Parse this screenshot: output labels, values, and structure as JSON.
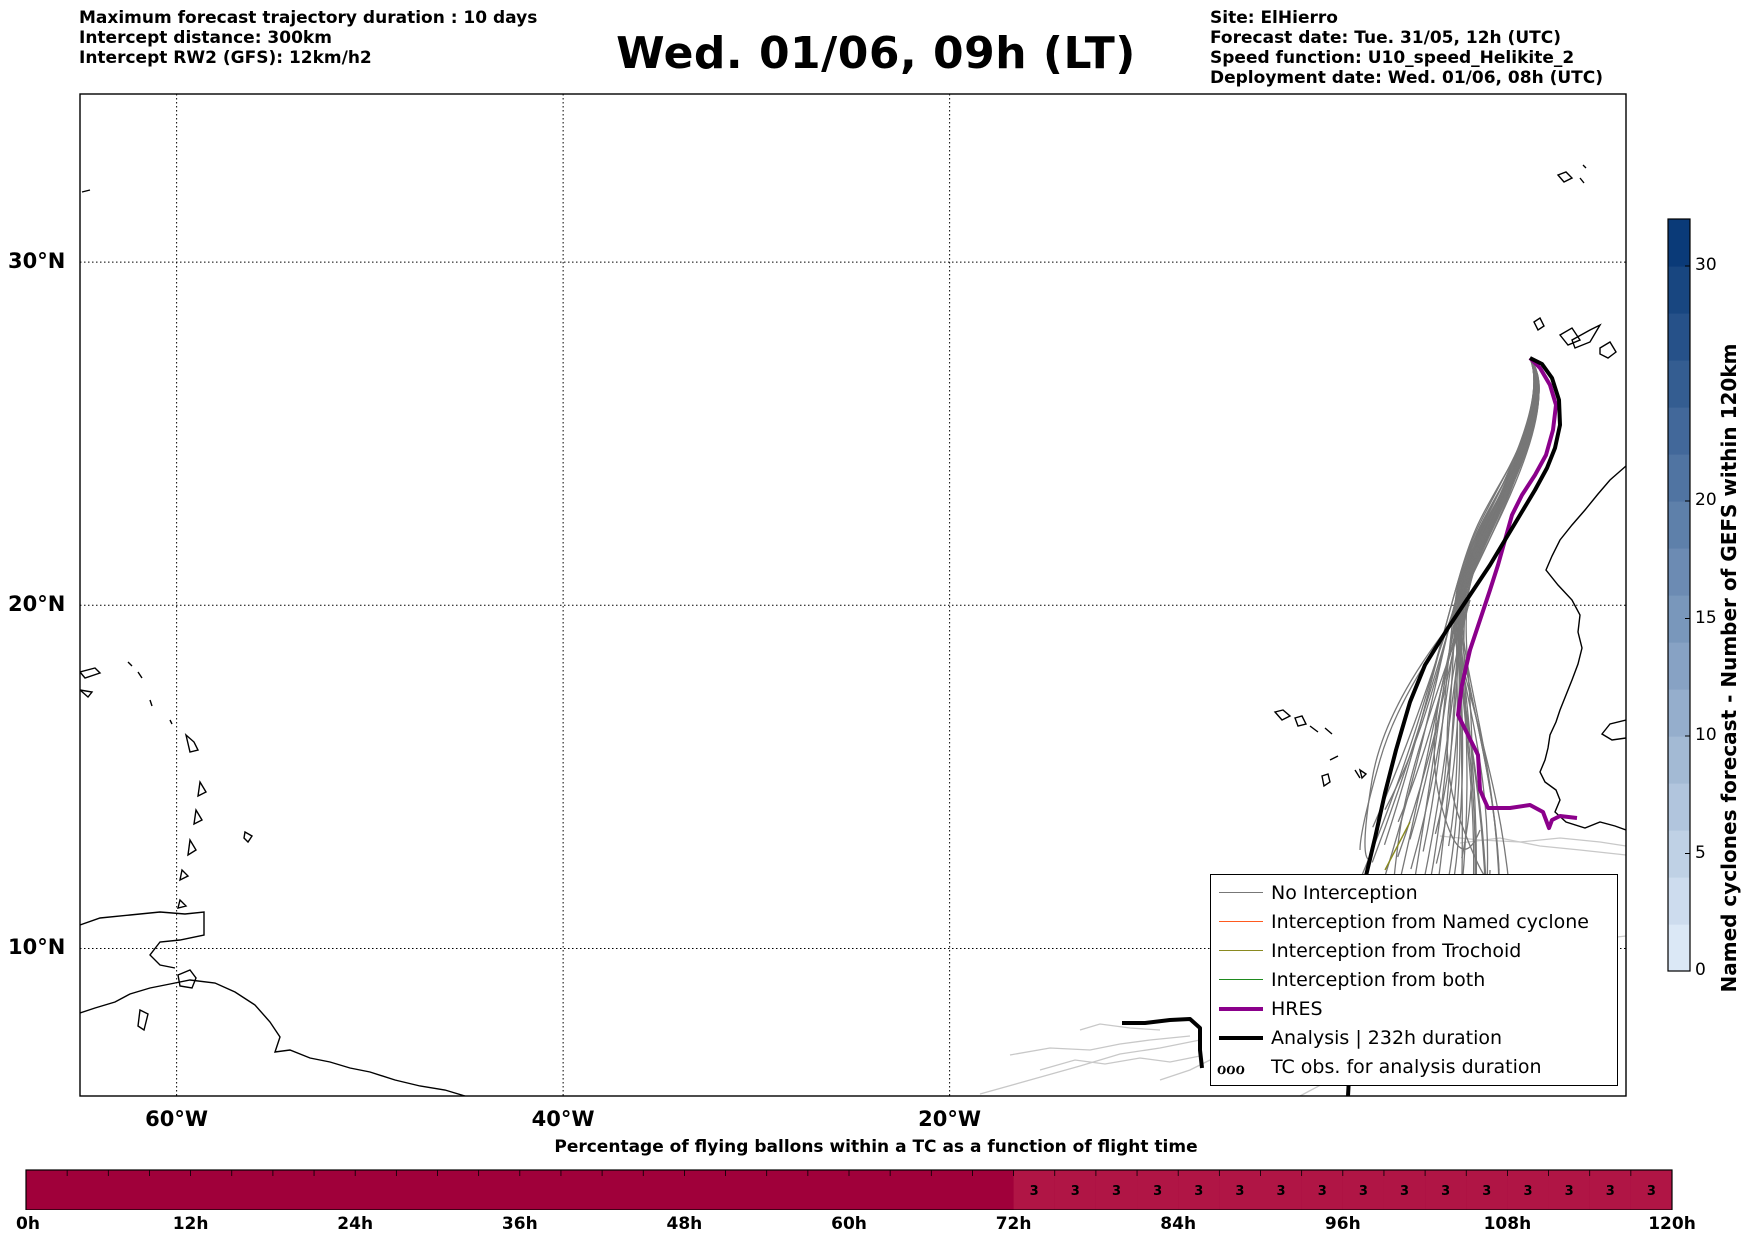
{
  "header": {
    "left_lines": [
      "Maximum forecast trajectory duration : 10 days",
      "Intercept distance: 300km",
      "Intercept RW2 (GFS):  12km/h2"
    ],
    "title": "Wed. 01/06, 09h (LT)",
    "right_lines": [
      "Site: ElHierro",
      "Forecast date: Tue. 31/05, 12h (UTC)",
      "Speed function: U10_speed_Helikite_2",
      "Deployment date: Wed. 01/06, 08h (UTC)"
    ]
  },
  "map": {
    "lon_range": [
      -65,
      15
    ],
    "lat_range": [
      5.7,
      34.9
    ],
    "lon_ticks": [
      {
        "value": -60,
        "label": "60°W"
      },
      {
        "value": -40,
        "label": "40°W"
      },
      {
        "value": -20,
        "label": "20°W"
      }
    ],
    "lat_ticks": [
      {
        "value": 30,
        "label": "30°N"
      },
      {
        "value": 20,
        "label": "20°N"
      },
      {
        "value": 10,
        "label": "10°N"
      }
    ],
    "gridlines": true,
    "colors": {
      "no_interception": "#777777",
      "named_cyclone": "#ff5a1f",
      "trochoid": "#8a8a20",
      "both": "#1e8a1e",
      "hres": "#8b008b",
      "analysis": "#000000",
      "coastline": "#000000"
    }
  },
  "legend": {
    "items": [
      {
        "label": "No Interception",
        "style": "thin-gray"
      },
      {
        "label": "Interception from Named cyclone",
        "style": "thin-orange"
      },
      {
        "label": "Interception from Trochoid",
        "style": "thin-olive"
      },
      {
        "label": "Interception from both",
        "style": "thin-green"
      },
      {
        "label": "HRES",
        "style": "thick-purple"
      },
      {
        "label": "Analysis | 232h duration",
        "style": "thick-black"
      },
      {
        "label": "TC obs. for analysis duration",
        "style": "cyclone-symbols"
      }
    ],
    "symbol_glyph": "ℴℴℴ"
  },
  "colorbar": {
    "title": "Named cyclones forecast - Number of GEFS within 120km",
    "range": [
      0,
      32
    ],
    "ticks": [
      {
        "value": 0,
        "label": "0"
      },
      {
        "value": 5,
        "label": "5"
      },
      {
        "value": 10,
        "label": "10"
      },
      {
        "value": 15,
        "label": "15"
      },
      {
        "value": 20,
        "label": "20"
      },
      {
        "value": 30,
        "label": "30"
      }
    ],
    "color_low": "#dbe8f6",
    "color_high": "#0a3a78"
  },
  "flight_bar": {
    "title": "Percentage of flying ballons within a TC as a function of flight time",
    "hours_max": 120,
    "ticks": [
      {
        "value": 0,
        "label": "0h"
      },
      {
        "value": 12,
        "label": "12h"
      },
      {
        "value": 24,
        "label": "24h"
      },
      {
        "value": 36,
        "label": "36h"
      },
      {
        "value": 48,
        "label": "48h"
      },
      {
        "value": 60,
        "label": "60h"
      },
      {
        "value": 72,
        "label": "72h"
      },
      {
        "value": 84,
        "label": "84h"
      },
      {
        "value": 96,
        "label": "96h"
      },
      {
        "value": 108,
        "label": "108h"
      },
      {
        "value": 120,
        "label": "120h"
      }
    ],
    "segment_hours": 3,
    "color_zero": "#a0003a",
    "color_nonzero": "#b01545",
    "percent_values": [
      {
        "hour_start": 72,
        "hour_end": 75,
        "value": "3"
      },
      {
        "hour_start": 75,
        "hour_end": 78,
        "value": "3"
      },
      {
        "hour_start": 78,
        "hour_end": 81,
        "value": "3"
      },
      {
        "hour_start": 81,
        "hour_end": 84,
        "value": "3"
      },
      {
        "hour_start": 84,
        "hour_end": 87,
        "value": "3"
      },
      {
        "hour_start": 87,
        "hour_end": 90,
        "value": "3"
      },
      {
        "hour_start": 90,
        "hour_end": 93,
        "value": "3"
      },
      {
        "hour_start": 93,
        "hour_end": 96,
        "value": "3"
      },
      {
        "hour_start": 96,
        "hour_end": 99,
        "value": "3"
      },
      {
        "hour_start": 99,
        "hour_end": 102,
        "value": "3"
      },
      {
        "hour_start": 102,
        "hour_end": 105,
        "value": "3"
      },
      {
        "hour_start": 105,
        "hour_end": 108,
        "value": "3"
      },
      {
        "hour_start": 108,
        "hour_end": 111,
        "value": "3"
      },
      {
        "hour_start": 111,
        "hour_end": 114,
        "value": "3"
      },
      {
        "hour_start": 114,
        "hour_end": 117,
        "value": "3"
      },
      {
        "hour_start": 117,
        "hour_end": 120,
        "value": "3"
      }
    ]
  }
}
